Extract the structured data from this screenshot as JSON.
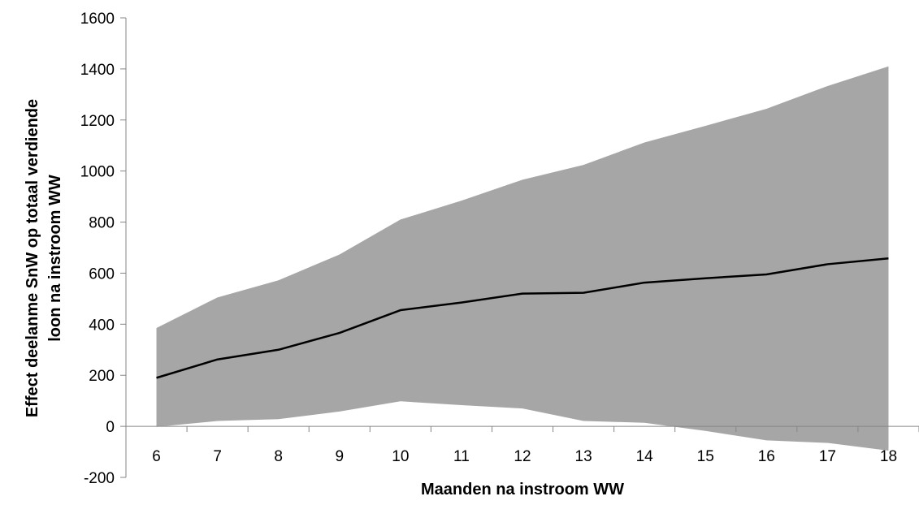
{
  "chart_data": {
    "type": "area",
    "title": "",
    "xlabel": "Maanden na instroom WW",
    "ylabel_line1": "Effect deelanme SnW op totaal verdiende",
    "ylabel_line2": "loon na instroom WW",
    "x": [
      6,
      7,
      8,
      9,
      10,
      11,
      12,
      13,
      14,
      15,
      16,
      17,
      18
    ],
    "x_tick_labels": [
      "6",
      "7",
      "8",
      "9",
      "10",
      "11",
      "12",
      "13",
      "14",
      "15",
      "16",
      "17",
      "18"
    ],
    "ylim": [
      -200,
      1600
    ],
    "y_ticks": [
      -200,
      0,
      200,
      400,
      600,
      800,
      1000,
      1200,
      1400,
      1600
    ],
    "y_tick_labels": [
      "-200",
      "0",
      "200",
      "400",
      "600",
      "800",
      "1000",
      "1200",
      "1400",
      "1600"
    ],
    "grid": false,
    "legend": "none",
    "series": [
      {
        "type": "band",
        "color": "#a6a6a6",
        "upper": [
          385,
          505,
          572,
          673,
          810,
          884,
          966,
          1024,
          1112,
          1177,
          1244,
          1333,
          1410
        ],
        "lower": [
          -2,
          21,
          28,
          58,
          98,
          83,
          70,
          21,
          14,
          -18,
          -55,
          -65,
          -95
        ]
      },
      {
        "type": "line",
        "color": "#000000",
        "values": [
          190,
          262,
          300,
          366,
          455,
          485,
          520,
          523,
          563,
          580,
          595,
          635,
          658
        ]
      }
    ]
  }
}
